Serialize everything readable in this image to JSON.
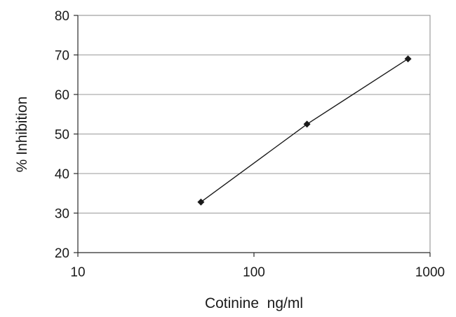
{
  "chart_data": {
    "type": "line",
    "title": "",
    "xlabel": "Cotinine  ng/ml",
    "ylabel": "% Inhibition",
    "x_scale": "log",
    "xlim": [
      10,
      1000
    ],
    "ylim": [
      20,
      80
    ],
    "x_ticks": [
      "10",
      "100",
      "1000"
    ],
    "y_ticks": [
      "20",
      "30",
      "40",
      "50",
      "60",
      "70",
      "80"
    ],
    "grid": "horizontal",
    "legend": "none",
    "series": [
      {
        "color": "#1a1a1a",
        "marker": "diamond",
        "x": [
          50,
          200,
          750
        ],
        "y": [
          32.8,
          52.5,
          69.0
        ]
      }
    ]
  }
}
